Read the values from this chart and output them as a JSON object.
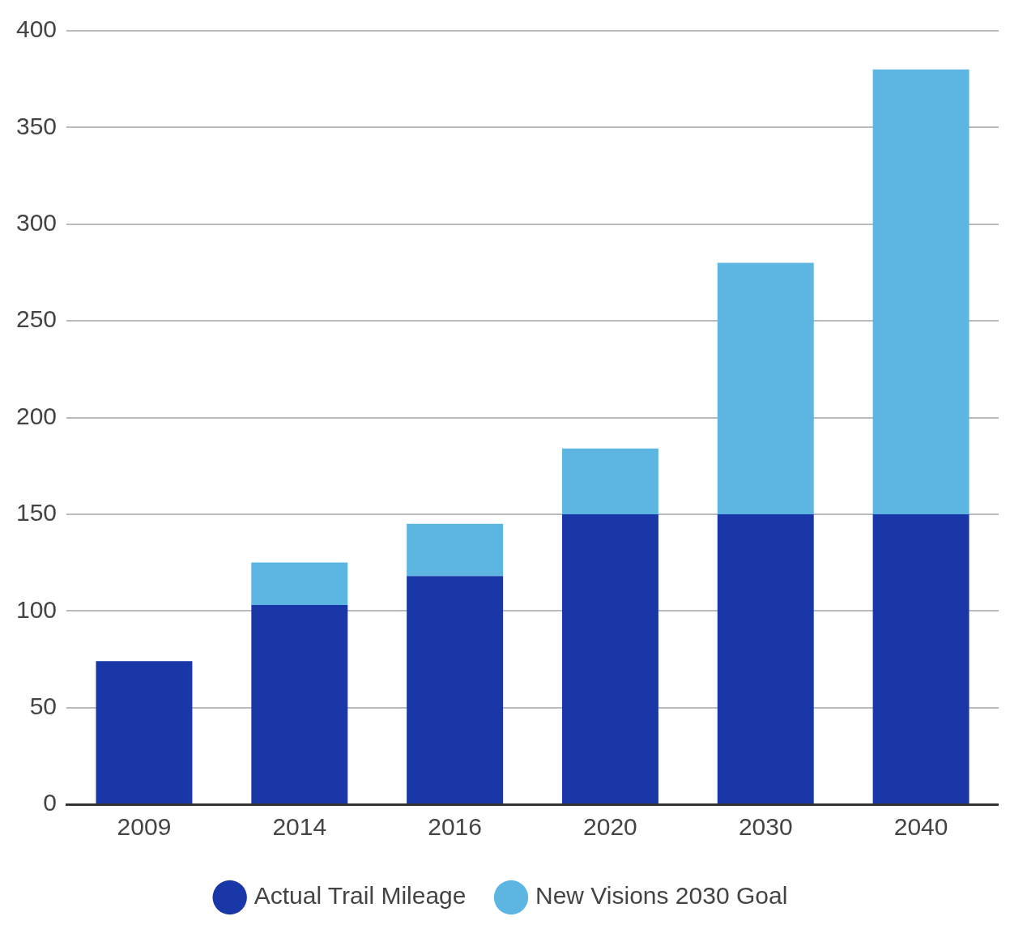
{
  "chart_data": {
    "type": "bar",
    "stacked": true,
    "categories": [
      "2009",
      "2014",
      "2016",
      "2020",
      "2030",
      "2040"
    ],
    "series": [
      {
        "name": "Actual Trail Mileage",
        "color": "#1a37a8",
        "values": [
          74,
          103,
          118,
          150,
          150,
          150
        ]
      },
      {
        "name": "New Visions 2030 Goal",
        "color": "#5db6e2",
        "values": [
          0,
          22,
          27,
          34,
          130,
          230
        ]
      }
    ],
    "ylim": [
      0,
      400
    ],
    "yticks": [
      0,
      50,
      100,
      150,
      200,
      250,
      300,
      350,
      400
    ],
    "grid": "y",
    "legend": "bottom"
  }
}
